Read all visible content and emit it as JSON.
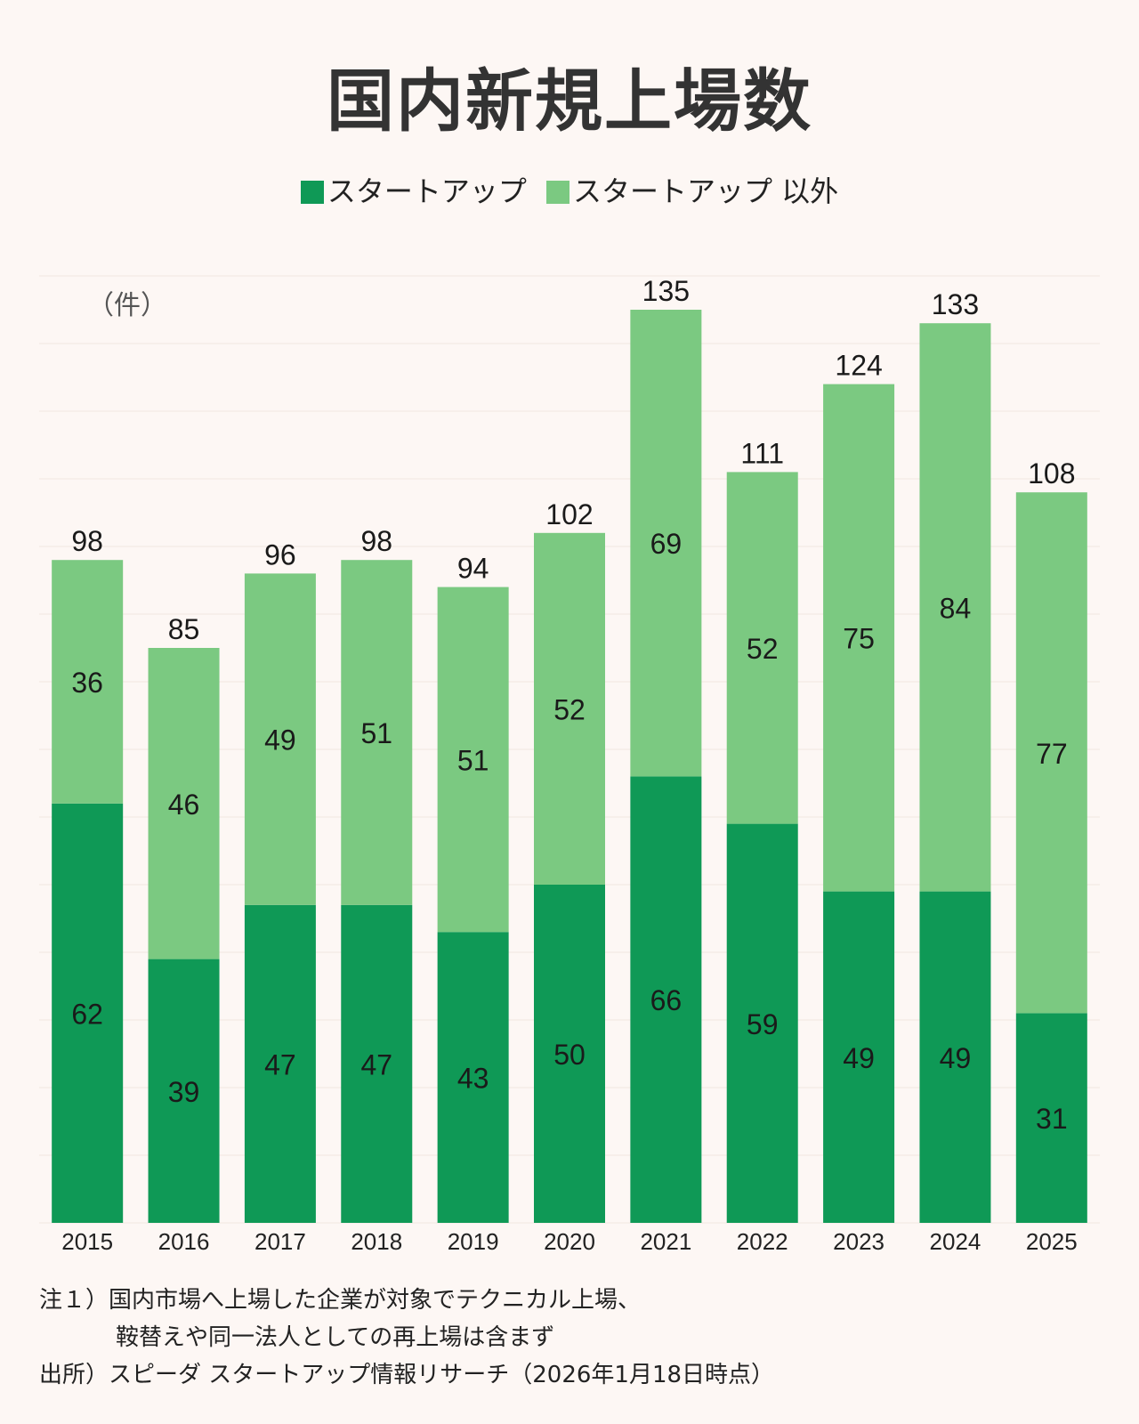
{
  "title": "国内新規上場数",
  "legend": {
    "startup": "スタートアップ",
    "non_startup": "スタートアップ 以外"
  },
  "unit_label": "（件）",
  "colors": {
    "startup": "#0f9956",
    "non_startup": "#7bc981",
    "background": "#fdf7f4"
  },
  "chart_data": {
    "type": "bar",
    "stacked": true,
    "categories": [
      "2015",
      "2016",
      "2017",
      "2018",
      "2019",
      "2020",
      "2021",
      "2022",
      "2023",
      "2024",
      "2025"
    ],
    "series": [
      {
        "name": "スタートアップ",
        "values": [
          62,
          39,
          47,
          47,
          43,
          50,
          66,
          59,
          49,
          49,
          31
        ]
      },
      {
        "name": "スタートアップ 以外",
        "values": [
          36,
          46,
          49,
          51,
          51,
          52,
          69,
          52,
          75,
          84,
          77
        ]
      }
    ],
    "totals": [
      98,
      85,
      96,
      98,
      94,
      102,
      135,
      111,
      124,
      133,
      108
    ],
    "ylim": [
      0,
      140
    ],
    "grid": true,
    "legend_position": "top-center"
  },
  "notes": {
    "note1_line1": "注１）国内市場へ上場した企業が対象でテクニカル上場、",
    "note1_line2": "鞍替えや同一法人としての再上場は含まず",
    "source": "出所）スピーダ スタートアップ情報リサーチ（2026年1月18日時点）"
  }
}
